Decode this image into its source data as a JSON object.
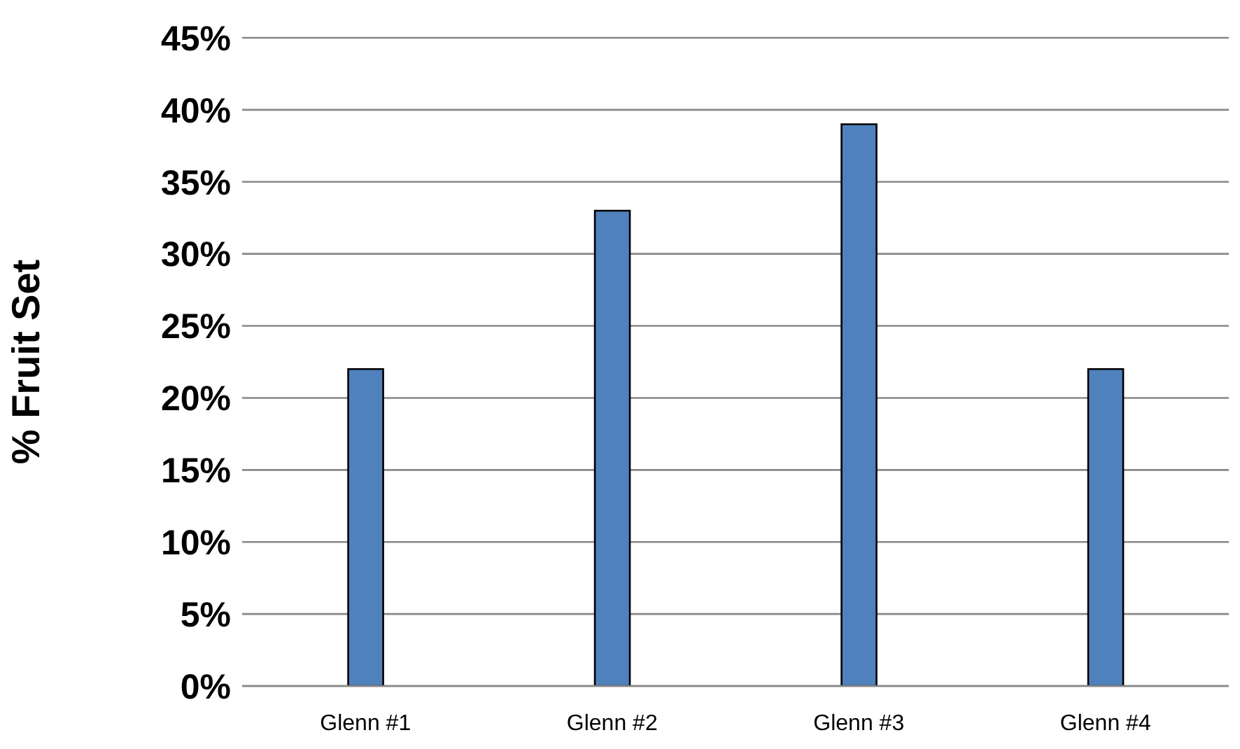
{
  "chart_data": {
    "type": "bar",
    "ylabel": "% Fruit Set",
    "categories": [
      "Glenn #1",
      "Glenn #2",
      "Glenn #3",
      "Glenn #4"
    ],
    "values": [
      22,
      33,
      39,
      22
    ],
    "color": "#4f81bd",
    "ylim": [
      0,
      45
    ],
    "yticks": [
      {
        "value": 0,
        "label": "0%"
      },
      {
        "value": 5,
        "label": "5%"
      },
      {
        "value": 10,
        "label": "10%"
      },
      {
        "value": 15,
        "label": "15%"
      },
      {
        "value": 20,
        "label": "20%"
      },
      {
        "value": 25,
        "label": "25%"
      },
      {
        "value": 30,
        "label": "30%"
      },
      {
        "value": 35,
        "label": "35%"
      },
      {
        "value": 40,
        "label": "40%"
      },
      {
        "value": 45,
        "label": "45%"
      }
    ],
    "grid": "y"
  }
}
